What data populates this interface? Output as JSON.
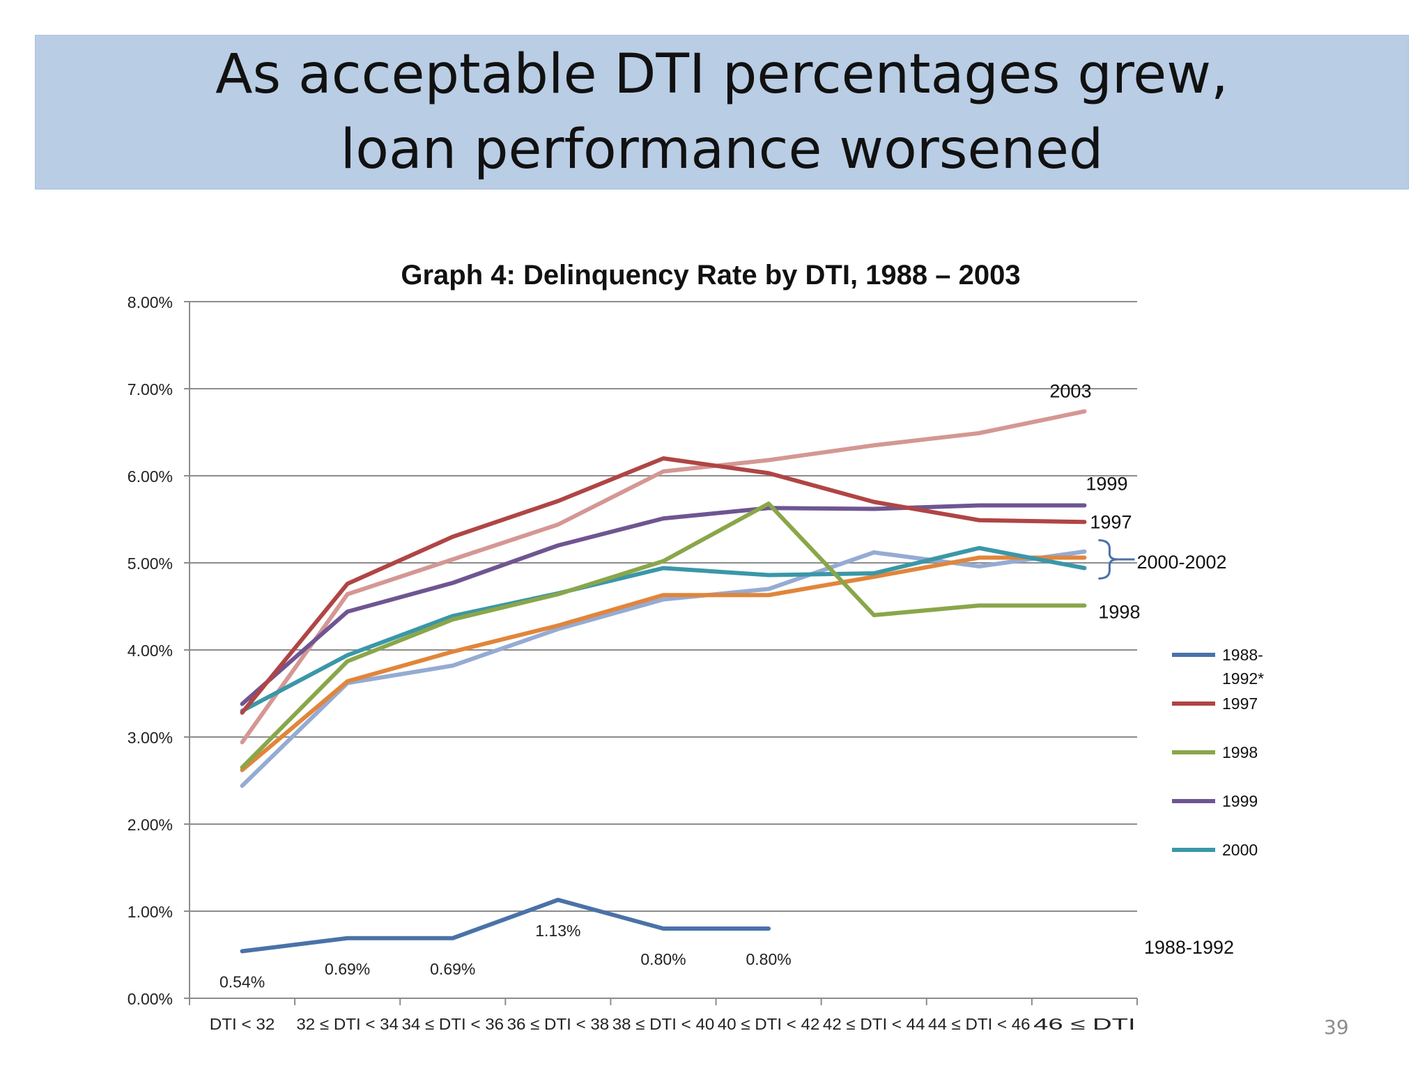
{
  "slide": {
    "title": "As acceptable DTI percentages grew, loan performance worsened",
    "page_number": "39"
  },
  "chart_data": {
    "type": "line",
    "title": "Graph 4: Delinquency Rate by DTI, 1988 – 2003",
    "xlabel": "",
    "ylabel": "",
    "ylim": [
      0,
      8
    ],
    "y_ticks": [
      0,
      1,
      2,
      3,
      4,
      5,
      6,
      7,
      8
    ],
    "y_tick_labels": [
      "0.00%",
      "1.00%",
      "2.00%",
      "3.00%",
      "4.00%",
      "5.00%",
      "6.00%",
      "7.00%",
      "8.00%"
    ],
    "grid": true,
    "categories": [
      "DTI < 32",
      "32 ≤ DTI < 34",
      "34 ≤ DTI < 36",
      "36 ≤ DTI < 38",
      "38 ≤ DTI < 40",
      "40 ≤ DTI < 42",
      "42 ≤ DTI < 44",
      "44 ≤ DTI < 46",
      "46 ≤ DTI"
    ],
    "x_tick_labels": [
      "DTI < 32",
      "32 ≤ DTI < 34",
      "34 ≤ DTI < 36",
      "36 ≤ DTI < 38",
      "38 ≤ DTI < 40",
      "40 ≤ DTI < 42",
      "42 ≤ DTI < 44",
      "44 ≤ DTI < 46",
      "46 ≤ DTI"
    ],
    "series": [
      {
        "name": "1988-1992*",
        "color": "#4a72a8",
        "values": [
          0.54,
          0.69,
          0.69,
          1.13,
          0.8,
          0.8,
          null,
          null,
          null
        ]
      },
      {
        "name": "1997",
        "color": "#b04545",
        "values": [
          3.28,
          4.76,
          5.3,
          5.71,
          6.2,
          6.03,
          5.7,
          5.49,
          5.47
        ]
      },
      {
        "name": "1998",
        "color": "#8aa64a",
        "values": [
          2.65,
          3.87,
          4.35,
          4.64,
          5.02,
          5.68,
          4.4,
          4.51,
          4.51
        ]
      },
      {
        "name": "1999",
        "color": "#6f5591",
        "values": [
          3.38,
          4.44,
          4.77,
          5.2,
          5.51,
          5.63,
          5.62,
          5.66,
          5.66
        ]
      },
      {
        "name": "2000",
        "color": "#3a97a8",
        "values": [
          3.3,
          3.94,
          4.39,
          4.65,
          4.94,
          4.86,
          4.88,
          5.17,
          4.94
        ]
      },
      {
        "color": "#e1853b",
        "values": [
          2.62,
          3.64,
          3.98,
          4.28,
          4.63,
          4.63,
          4.84,
          5.06,
          5.06
        ]
      },
      {
        "color": "#95abd3",
        "values": [
          2.44,
          3.62,
          3.82,
          4.24,
          4.58,
          4.7,
          5.12,
          4.96,
          5.13
        ]
      },
      {
        "color": "#d49794",
        "values": [
          2.94,
          4.64,
          5.04,
          5.44,
          6.05,
          6.18,
          6.35,
          6.49,
          6.74
        ]
      }
    ],
    "data_labels": {
      "series_index": 0,
      "labels": [
        "0.54%",
        "0.69%",
        "0.69%",
        "1.13%",
        "0.80%",
        "0.80%"
      ],
      "placement": [
        "below",
        "below",
        "below",
        "below",
        "below",
        "below"
      ]
    },
    "annotations": [
      {
        "text": "2003",
        "near": "2003-line-end"
      },
      {
        "text": "1999",
        "near": "1999-line-end"
      },
      {
        "text": "1997",
        "near": "1997-line-end"
      },
      {
        "text": "2000-2002",
        "near": "brace-right"
      },
      {
        "text": "1998",
        "near": "1998-line-end"
      },
      {
        "text": "1988-1992",
        "near": "1988-line-right"
      }
    ],
    "legend": {
      "placement": "right",
      "entries": [
        {
          "label": "1988-\n1992*",
          "series_index": 0
        },
        {
          "label": "1997",
          "series_index": 1
        },
        {
          "label": "1998",
          "series_index": 2
        },
        {
          "label": "1999",
          "series_index": 3
        },
        {
          "label": "2000",
          "series_index": 4
        }
      ]
    }
  }
}
